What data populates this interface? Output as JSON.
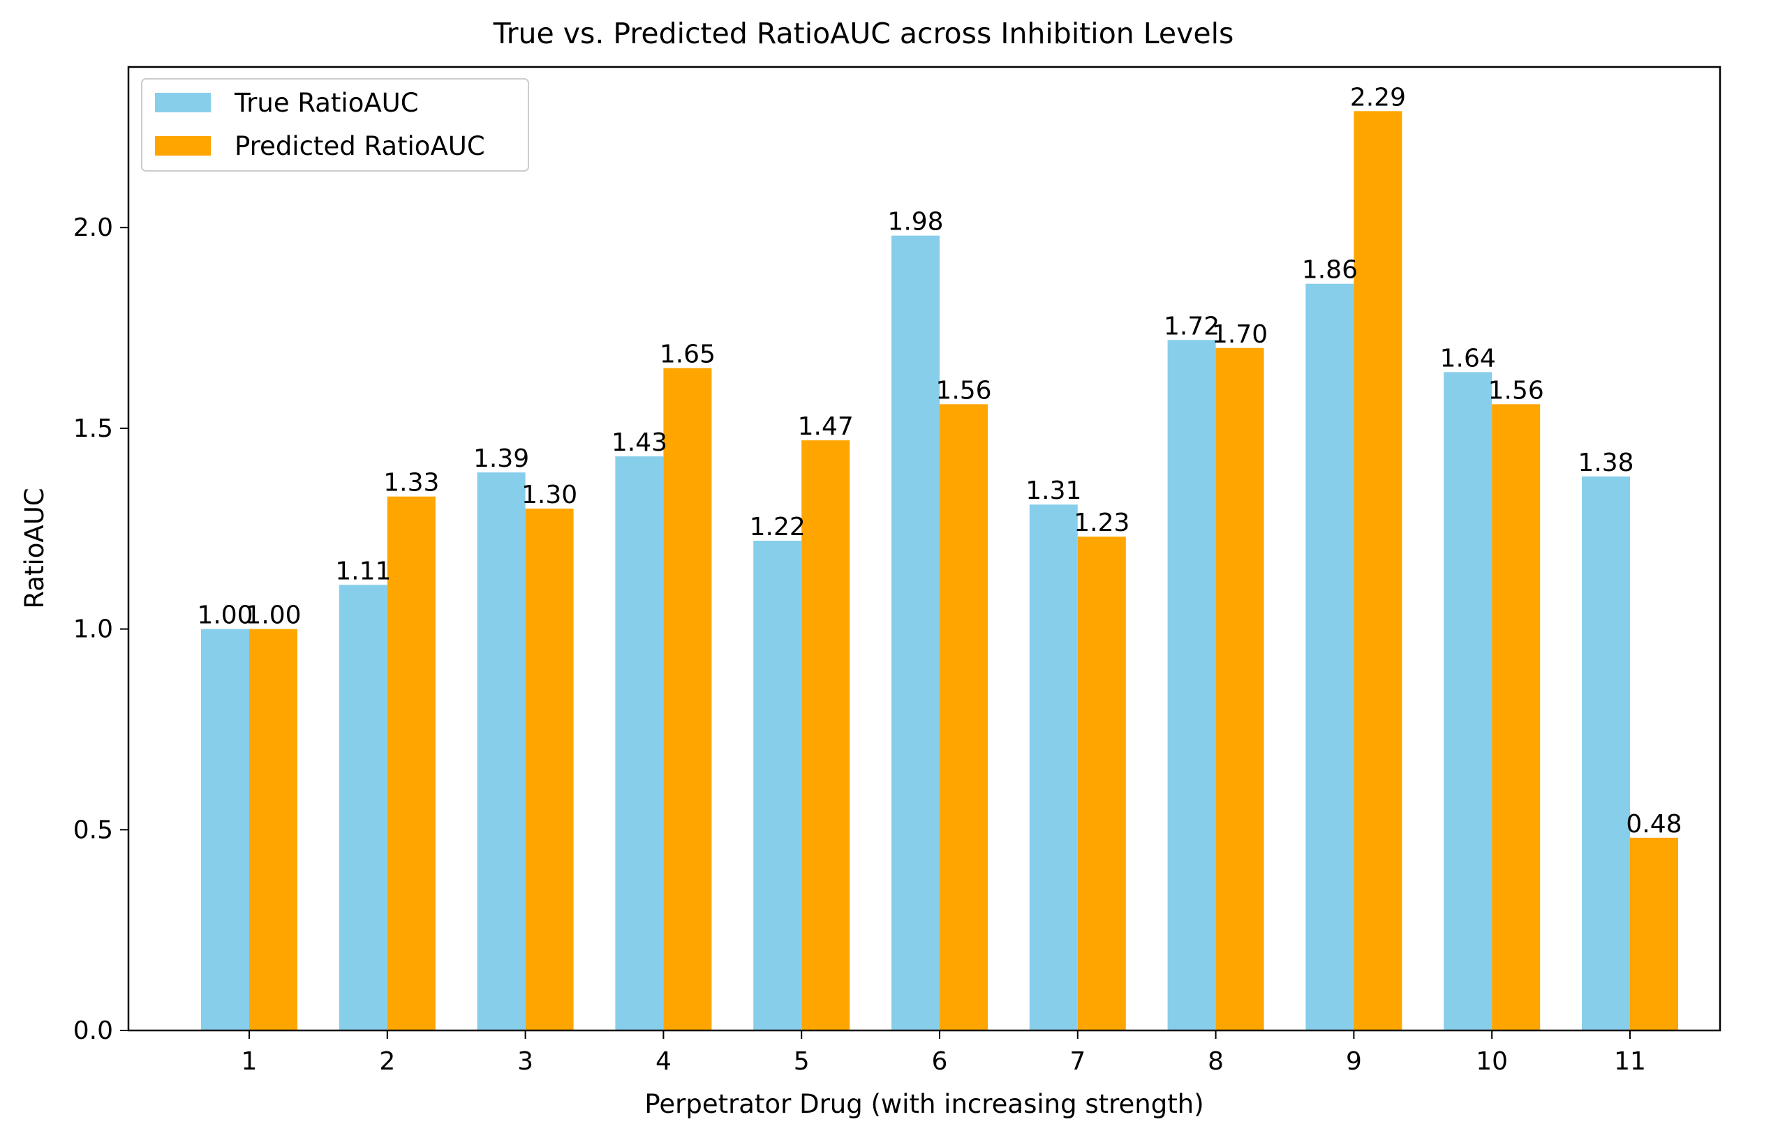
{
  "chart_data": {
    "type": "bar",
    "title": "True vs. Predicted RatioAUC across Inhibition Levels",
    "xlabel": "Perpetrator Drug (with increasing strength)",
    "ylabel": "RatioAUC",
    "categories": [
      "1",
      "2",
      "3",
      "4",
      "5",
      "6",
      "7",
      "8",
      "9",
      "10",
      "11"
    ],
    "series": [
      {
        "name": "True RatioAUC",
        "color": "#87ceeb",
        "values": [
          1.0,
          1.11,
          1.39,
          1.43,
          1.22,
          1.98,
          1.31,
          1.72,
          1.86,
          1.64,
          1.38
        ],
        "labels": [
          "1.00",
          "1.11",
          "1.39",
          "1.43",
          "1.22",
          "1.98",
          "1.31",
          "1.72",
          "1.86",
          "1.64",
          "1.38"
        ]
      },
      {
        "name": "Predicted RatioAUC",
        "color": "#ffa500",
        "values": [
          1.0,
          1.33,
          1.3,
          1.65,
          1.47,
          1.56,
          1.23,
          1.7,
          2.29,
          1.56,
          0.48
        ],
        "labels": [
          "1.00",
          "1.33",
          "1.30",
          "1.65",
          "1.47",
          "1.56",
          "1.23",
          "1.70",
          "2.29",
          "1.56",
          "0.48"
        ]
      }
    ],
    "yticks": [
      "0.0",
      "0.5",
      "1.0",
      "1.5",
      "2.0"
    ],
    "ylim": [
      0,
      2.4
    ],
    "legend_position": "upper-left",
    "grid": false
  }
}
